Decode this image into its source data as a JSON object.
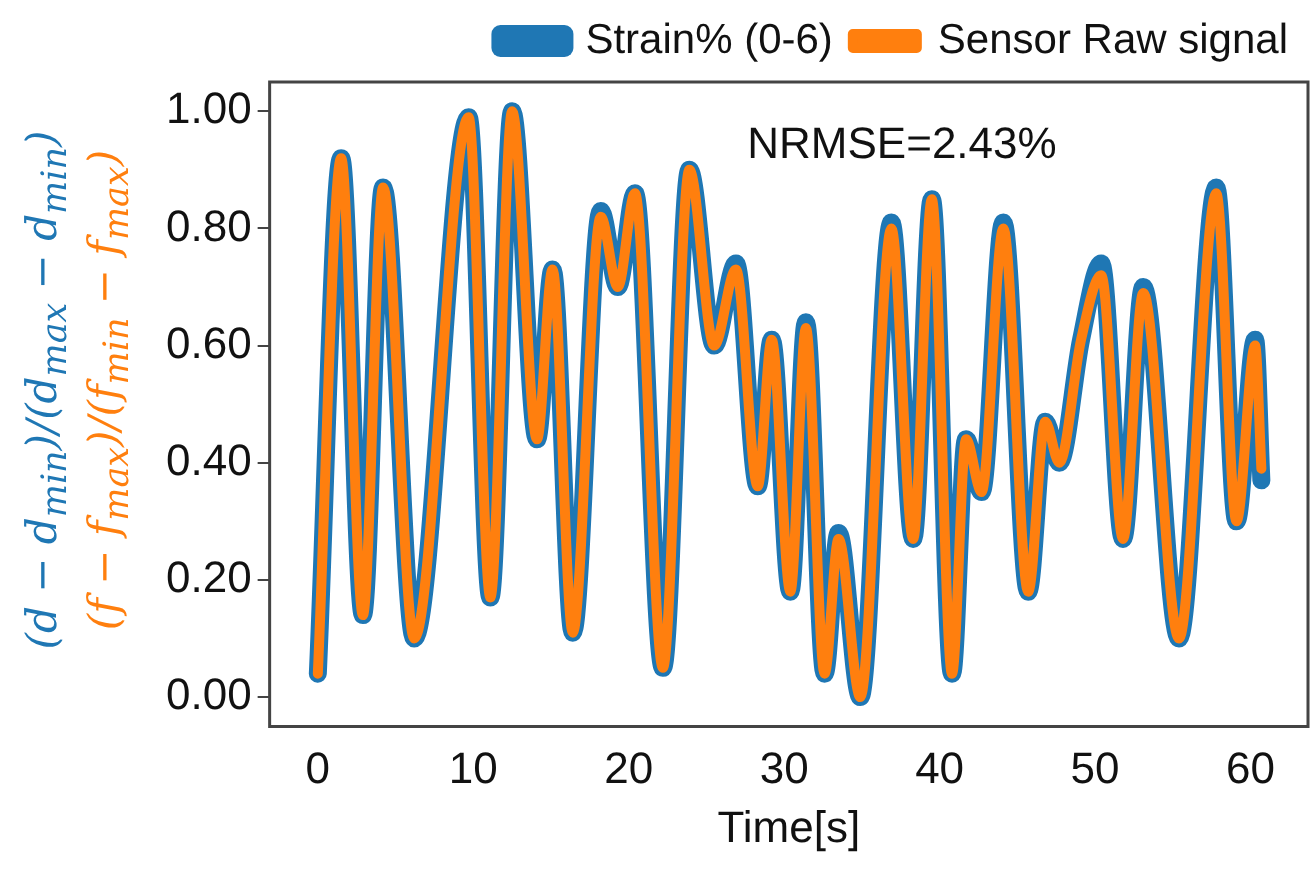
{
  "chart_data": {
    "type": "line",
    "xlabel": "Time[s]",
    "ylabel": "(d − d$_{min}$)/(d$_{max}$ − d$_{min}$)",
    "y2label": "(f − f$_{max}$)/(f$_{min}$ − f$_{max}$)",
    "annotations": [
      "NRMSE=2.43%"
    ],
    "x": [
      0,
      1.5,
      2.9,
      4.2,
      6.2,
      9.7,
      11.1,
      12.5,
      14.1,
      15.1,
      16.4,
      18.2,
      19.3,
      20.4,
      22.2,
      23.9,
      25.5,
      26.9,
      28.3,
      29.2,
      30.4,
      31.4,
      32.6,
      33.5,
      34.9,
      36.9,
      38.3,
      39.5,
      40.8,
      41.7,
      42.7,
      44.1,
      45.7,
      46.8,
      47.7,
      49.1,
      50.4,
      51.8,
      53.1,
      55.4,
      57.8,
      59.1,
      60.3,
      60.7
    ],
    "series": [
      {
        "name": "Strain% (0-6)",
        "color": "#1f77b4",
        "values": [
          0.04,
          0.92,
          0.14,
          0.87,
          0.1,
          0.99,
          0.17,
          1.0,
          0.44,
          0.73,
          0.11,
          0.83,
          0.7,
          0.86,
          0.05,
          0.9,
          0.6,
          0.74,
          0.36,
          0.61,
          0.18,
          0.64,
          0.04,
          0.28,
          0.0,
          0.81,
          0.27,
          0.85,
          0.04,
          0.44,
          0.35,
          0.81,
          0.18,
          0.47,
          0.4,
          0.61,
          0.74,
          0.27,
          0.7,
          0.1,
          0.87,
          0.3,
          0.61,
          0.37
        ]
      },
      {
        "name": "Sensor Raw signal",
        "color": "#ff7f0e",
        "values": [
          0.04,
          0.92,
          0.14,
          0.87,
          0.1,
          0.99,
          0.17,
          1.0,
          0.44,
          0.73,
          0.11,
          0.82,
          0.7,
          0.86,
          0.05,
          0.9,
          0.6,
          0.73,
          0.36,
          0.61,
          0.18,
          0.63,
          0.04,
          0.27,
          0.0,
          0.8,
          0.27,
          0.85,
          0.04,
          0.44,
          0.35,
          0.8,
          0.18,
          0.47,
          0.4,
          0.61,
          0.72,
          0.27,
          0.69,
          0.1,
          0.86,
          0.3,
          0.6,
          0.39
        ]
      }
    ],
    "xlim": [
      -3.1,
      63.7
    ],
    "xticks": [
      0,
      10,
      20,
      30,
      40,
      50,
      60
    ],
    "ylim": [
      -0.05,
      1.05
    ],
    "yticks": [
      {
        "value": 0,
        "label": "0.00"
      },
      {
        "value": 0.2,
        "label": "0.20"
      },
      {
        "value": 0.4,
        "label": "0.40"
      },
      {
        "value": 0.6,
        "label": "0.60"
      },
      {
        "value": 0.8,
        "label": "0.80"
      },
      {
        "value": 1,
        "label": "1.00"
      }
    ],
    "grid": false,
    "legend": "top",
    "marker": "none",
    "line_style": "solid"
  }
}
